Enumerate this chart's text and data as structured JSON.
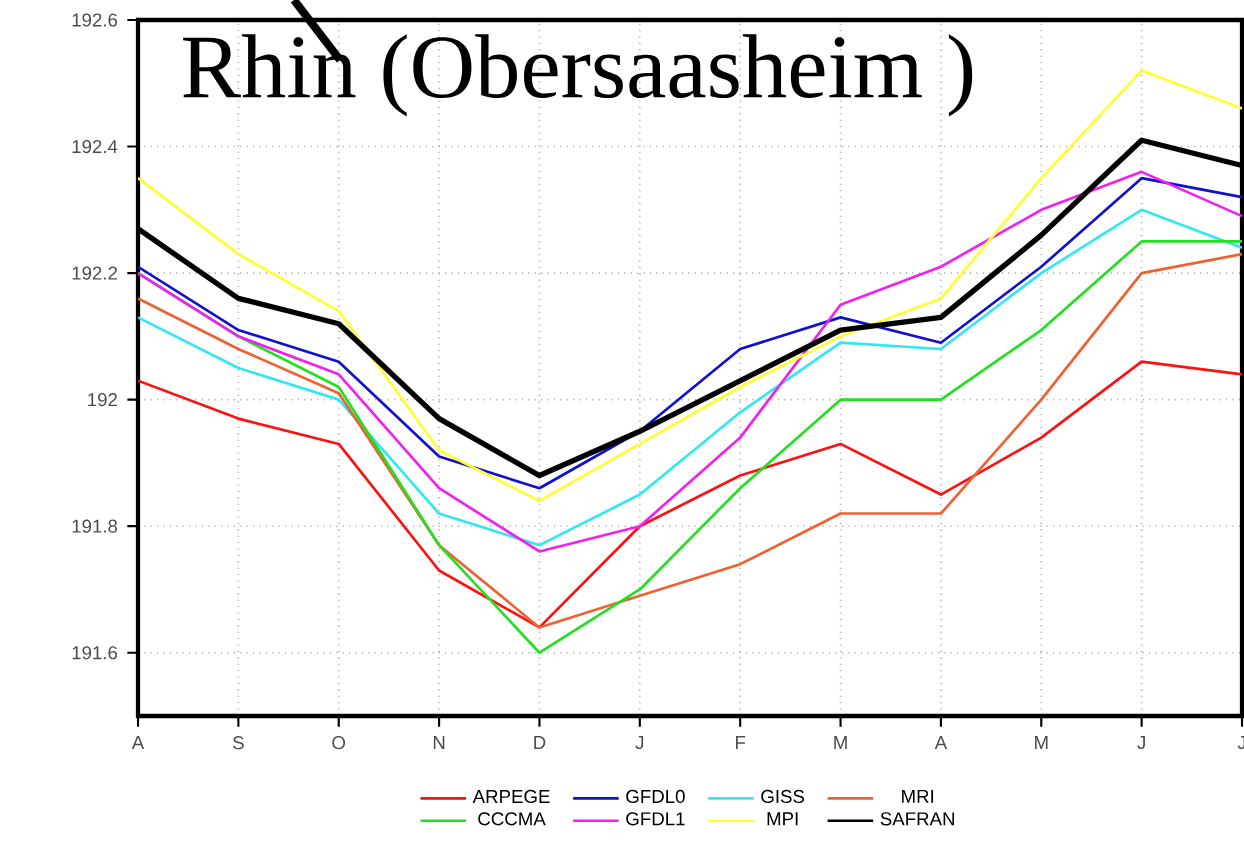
{
  "chart_data": {
    "type": "line",
    "title": "Rhin (Obersaasheim )",
    "categories": [
      "A",
      "S",
      "O",
      "N",
      "D",
      "J",
      "F",
      "M",
      "A",
      "M",
      "J",
      "J"
    ],
    "ylim": [
      191.5,
      192.6
    ],
    "yticks": [
      191.6,
      191.8,
      192,
      192.2,
      192.4,
      192.6
    ],
    "grid": true,
    "legend": "bottom",
    "marker": "none",
    "line_style": "solid",
    "series": [
      {
        "name": "ARPEGE",
        "color": "#ff1010",
        "values": [
          192.03,
          191.97,
          191.93,
          191.73,
          191.64,
          191.8,
          191.88,
          191.93,
          191.85,
          191.94,
          192.06,
          192.04
        ]
      },
      {
        "name": "GFDL0",
        "color": "#1010d0",
        "values": [
          192.21,
          192.11,
          192.06,
          191.91,
          191.86,
          191.95,
          192.08,
          192.13,
          192.09,
          192.21,
          192.35,
          192.32
        ]
      },
      {
        "name": "GISS",
        "color": "#30e8f0",
        "values": [
          192.13,
          192.05,
          192.0,
          191.82,
          191.77,
          191.85,
          191.98,
          192.09,
          192.08,
          192.2,
          192.3,
          192.24
        ]
      },
      {
        "name": "MRI",
        "color": "#f06030",
        "values": [
          192.16,
          192.08,
          192.01,
          191.77,
          191.64,
          191.69,
          191.74,
          191.82,
          191.82,
          192.0,
          192.2,
          192.23
        ]
      },
      {
        "name": "CCCMA",
        "color": "#20e020",
        "values": [
          192.2,
          192.1,
          192.02,
          191.77,
          191.6,
          191.7,
          191.86,
          192.0,
          192.0,
          192.11,
          192.25,
          192.25
        ]
      },
      {
        "name": "GFDL1",
        "color": "#f020f0",
        "values": [
          192.2,
          192.1,
          192.04,
          191.86,
          191.76,
          191.8,
          191.94,
          192.15,
          192.21,
          192.3,
          192.36,
          192.29
        ]
      },
      {
        "name": "MPI",
        "color": "#ffff30",
        "values": [
          192.35,
          192.23,
          192.14,
          191.92,
          191.84,
          191.93,
          192.02,
          192.1,
          192.16,
          192.35,
          192.52,
          192.46
        ]
      },
      {
        "name": "SAFRAN",
        "color": "#000000",
        "values": [
          192.27,
          192.16,
          192.12,
          191.97,
          191.88,
          191.95,
          192.03,
          192.11,
          192.13,
          192.26,
          192.41,
          192.37
        ]
      }
    ]
  }
}
